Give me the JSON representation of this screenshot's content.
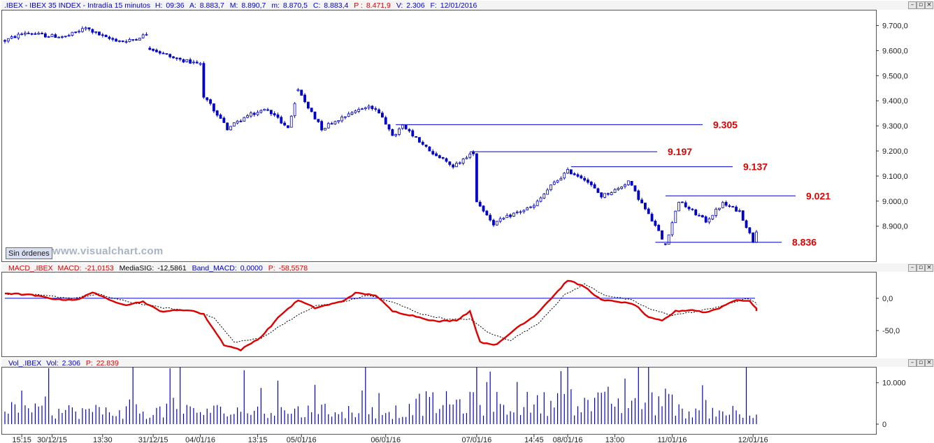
{
  "main_header": {
    "symbol": ".IBEX",
    "name": "IBEX 35 INDEX",
    "period": "Intradía 15 minutos",
    "hora_label": "H:",
    "hora": "09:36",
    "a_label": "A:",
    "a": "8.883,7",
    "M_label": "M:",
    "M": "8.890,7",
    "m_label": "m:",
    "m": "8.870,5",
    "c_label": "C:",
    "c": "8.883,4",
    "p_label": "P :",
    "p": "8.471,9",
    "v_label": "V:",
    "v": "2.306",
    "f_label": "F:",
    "f": "12/01/2016"
  },
  "macd_header": {
    "name": "MACD_.IBEX",
    "macd_label": "MACD:",
    "macd": "-21,0153",
    "sig_label": "MediaSIG:",
    "sig": "-12,5861",
    "band_label": "Band_MACD:",
    "band": "0,0000",
    "p_label": "P:",
    "p": "-58,5578"
  },
  "vol_header": {
    "name": "Vol_.IBEX",
    "vol_label": "Vol:",
    "vol": "2.306",
    "p_label": "P:",
    "p": "22.839"
  },
  "sin_ordenes_label": "Sin órdenes",
  "watermark": "www.visualchart.com",
  "window_buttons": [
    "minimize-icon",
    "restore-icon",
    "close-icon"
  ],
  "colors": {
    "price": "#0000cc",
    "level": "#e00000",
    "macd": "#e00000",
    "signal": "#000000",
    "volume": "#0000cc"
  },
  "chart_data": [
    {
      "type": "candlestick",
      "title": ".IBEX - IBEX 35 INDEX - Intradía 15 minutos",
      "ylim": [
        8760,
        9760
      ],
      "y_ticks": [
        "9.700,0",
        "9.600,0",
        "9.500,0",
        "9.400,0",
        "9.300,0",
        "9.200,0",
        "9.100,0",
        "9.000,0",
        "8.900,0"
      ],
      "y_tick_values": [
        9700,
        9600,
        9500,
        9400,
        9300,
        9200,
        9100,
        9000,
        8900
      ],
      "x_labels": [
        "15:15",
        "30/12/15",
        "13:30",
        "31/12/15",
        "04/01/16",
        "13:15",
        "05/01/16",
        "06/01/16",
        "07/01/16",
        "14:45",
        "08/01/16",
        "13:00",
        "11/01/16",
        "12/01/16"
      ],
      "x_label_bar_index": [
        5,
        14,
        29,
        44,
        58,
        75,
        88,
        113,
        140,
        157,
        167,
        181,
        198,
        222
      ],
      "bar_count": 224,
      "anchor_path": [
        [
          0,
          9640
        ],
        [
          6,
          9672
        ],
        [
          12,
          9660
        ],
        [
          18,
          9655
        ],
        [
          24,
          9690
        ],
        [
          30,
          9650
        ],
        [
          36,
          9635
        ],
        [
          42,
          9665
        ],
        [
          43,
          9610
        ],
        [
          50,
          9570
        ],
        [
          58,
          9545
        ],
        [
          59,
          9420
        ],
        [
          66,
          9290
        ],
        [
          72,
          9340
        ],
        [
          78,
          9368
        ],
        [
          84,
          9290
        ],
        [
          87,
          9440
        ],
        [
          94,
          9290
        ],
        [
          102,
          9350
        ],
        [
          108,
          9380
        ],
        [
          112,
          9340
        ],
        [
          115,
          9255
        ],
        [
          118,
          9300
        ],
        [
          121,
          9260
        ],
        [
          127,
          9190
        ],
        [
          133,
          9140
        ],
        [
          139,
          9195
        ],
        [
          140,
          9000
        ],
        [
          145,
          8910
        ],
        [
          151,
          8950
        ],
        [
          157,
          8980
        ],
        [
          162,
          9060
        ],
        [
          167,
          9120
        ],
        [
          172,
          9090
        ],
        [
          177,
          9020
        ],
        [
          182,
          9050
        ],
        [
          185,
          9080
        ],
        [
          189,
          8990
        ],
        [
          193,
          8900
        ],
        [
          196,
          8830
        ],
        [
          200,
          9000
        ],
        [
          204,
          8960
        ],
        [
          208,
          8920
        ],
        [
          213,
          8990
        ],
        [
          218,
          8960
        ],
        [
          221,
          8870
        ],
        [
          222,
          8840
        ],
        [
          223,
          8883
        ]
      ],
      "levels": [
        {
          "value": 9305,
          "label": "9.305",
          "start_bar": 116
        },
        {
          "value": 9197,
          "label": "9.197",
          "start_bar": 138
        },
        {
          "value": 9137,
          "label": "9.137",
          "start_bar": 168
        },
        {
          "value": 9021,
          "label": "9.021",
          "start_bar": 196
        },
        {
          "value": 8836,
          "label": "8.836",
          "start_bar": 193
        }
      ]
    },
    {
      "type": "line",
      "title": "MACD_.IBEX",
      "ylim": [
        -90,
        40
      ],
      "y_ticks": [
        "0,0",
        "-50,0"
      ],
      "y_tick_values": [
        0,
        -50
      ],
      "band_value": 0,
      "macd_path": [
        [
          0,
          8
        ],
        [
          8,
          5
        ],
        [
          16,
          -2
        ],
        [
          22,
          -2
        ],
        [
          26,
          10
        ],
        [
          31,
          -3
        ],
        [
          36,
          -10
        ],
        [
          41,
          -5
        ],
        [
          46,
          -20
        ],
        [
          55,
          -18
        ],
        [
          59,
          -25
        ],
        [
          65,
          -72
        ],
        [
          70,
          -80
        ],
        [
          76,
          -60
        ],
        [
          82,
          -25
        ],
        [
          87,
          -3
        ],
        [
          92,
          -15
        ],
        [
          100,
          -5
        ],
        [
          104,
          8
        ],
        [
          110,
          5
        ],
        [
          115,
          -20
        ],
        [
          122,
          -28
        ],
        [
          128,
          -36
        ],
        [
          134,
          -34
        ],
        [
          138,
          -20
        ],
        [
          141,
          -68
        ],
        [
          146,
          -72
        ],
        [
          152,
          -45
        ],
        [
          157,
          -28
        ],
        [
          163,
          5
        ],
        [
          167,
          28
        ],
        [
          172,
          18
        ],
        [
          177,
          -3
        ],
        [
          182,
          -5
        ],
        [
          187,
          -10
        ],
        [
          191,
          -30
        ],
        [
          195,
          -35
        ],
        [
          199,
          -20
        ],
        [
          204,
          -18
        ],
        [
          208,
          -22
        ],
        [
          212,
          -15
        ],
        [
          217,
          -2
        ],
        [
          221,
          -5
        ],
        [
          224,
          -20
        ]
      ],
      "signal_path": [
        [
          0,
          7
        ],
        [
          10,
          5
        ],
        [
          20,
          0
        ],
        [
          28,
          6
        ],
        [
          36,
          -5
        ],
        [
          46,
          -14
        ],
        [
          56,
          -20
        ],
        [
          62,
          -30
        ],
        [
          68,
          -68
        ],
        [
          76,
          -62
        ],
        [
          84,
          -35
        ],
        [
          92,
          -12
        ],
        [
          100,
          -6
        ],
        [
          108,
          5
        ],
        [
          116,
          -8
        ],
        [
          124,
          -25
        ],
        [
          132,
          -33
        ],
        [
          138,
          -32
        ],
        [
          144,
          -55
        ],
        [
          150,
          -65
        ],
        [
          158,
          -40
        ],
        [
          166,
          5
        ],
        [
          172,
          22
        ],
        [
          178,
          5
        ],
        [
          186,
          -3
        ],
        [
          192,
          -18
        ],
        [
          198,
          -26
        ],
        [
          206,
          -20
        ],
        [
          214,
          -10
        ],
        [
          220,
          0
        ],
        [
          224,
          -10
        ]
      ]
    },
    {
      "type": "bar",
      "title": "Vol_.IBEX",
      "ylim": [
        0,
        13500
      ],
      "y_ticks": [
        "10.000",
        "0"
      ],
      "y_tick_values": [
        10000,
        0
      ],
      "last_value": 2306,
      "spikes": [
        [
          13,
          13500
        ],
        [
          38,
          13800
        ],
        [
          49,
          13500
        ],
        [
          52,
          13800
        ],
        [
          71,
          13000
        ],
        [
          81,
          10500
        ],
        [
          92,
          9500
        ],
        [
          107,
          13800
        ],
        [
          140,
          13800
        ],
        [
          144,
          12700
        ],
        [
          165,
          12800
        ],
        [
          167,
          14000
        ],
        [
          184,
          11000
        ],
        [
          188,
          13800
        ],
        [
          191,
          13800
        ],
        [
          220,
          14000
        ]
      ]
    }
  ]
}
